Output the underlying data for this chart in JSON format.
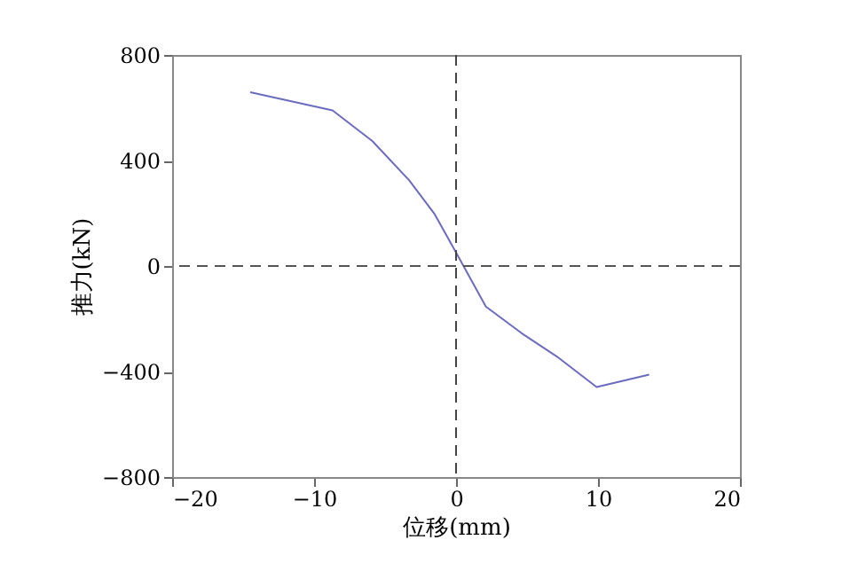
{
  "chart_data": {
    "type": "line",
    "xlabel": "位移(mm)",
    "ylabel": "推力(kN)",
    "x": [
      -14.5,
      -8.7,
      -5.9,
      -3.3,
      -1.5,
      0,
      2.1,
      4.6,
      7.1,
      9.9,
      13.6
    ],
    "series": [
      {
        "color": "#6b6bbf",
        "values": [
          659,
          590,
          474,
          325,
          196,
          51,
          -154,
          -254,
          -343,
          -459,
          -412
        ]
      }
    ],
    "xlim": [
      -20,
      20
    ],
    "xticks": [
      -20,
      -10,
      0,
      10,
      20
    ],
    "ylim": [
      -800,
      800
    ],
    "yticks": [
      -800,
      -400,
      0,
      400,
      800
    ],
    "ref_lines": [
      {
        "axis": "x",
        "value": 0,
        "line_style": "dashed",
        "color": "#444444"
      },
      {
        "axis": "y",
        "value": 0,
        "line_style": "dashed",
        "color": "#555555"
      }
    ],
    "grid": false,
    "marker": "none",
    "line_style": "solid"
  }
}
